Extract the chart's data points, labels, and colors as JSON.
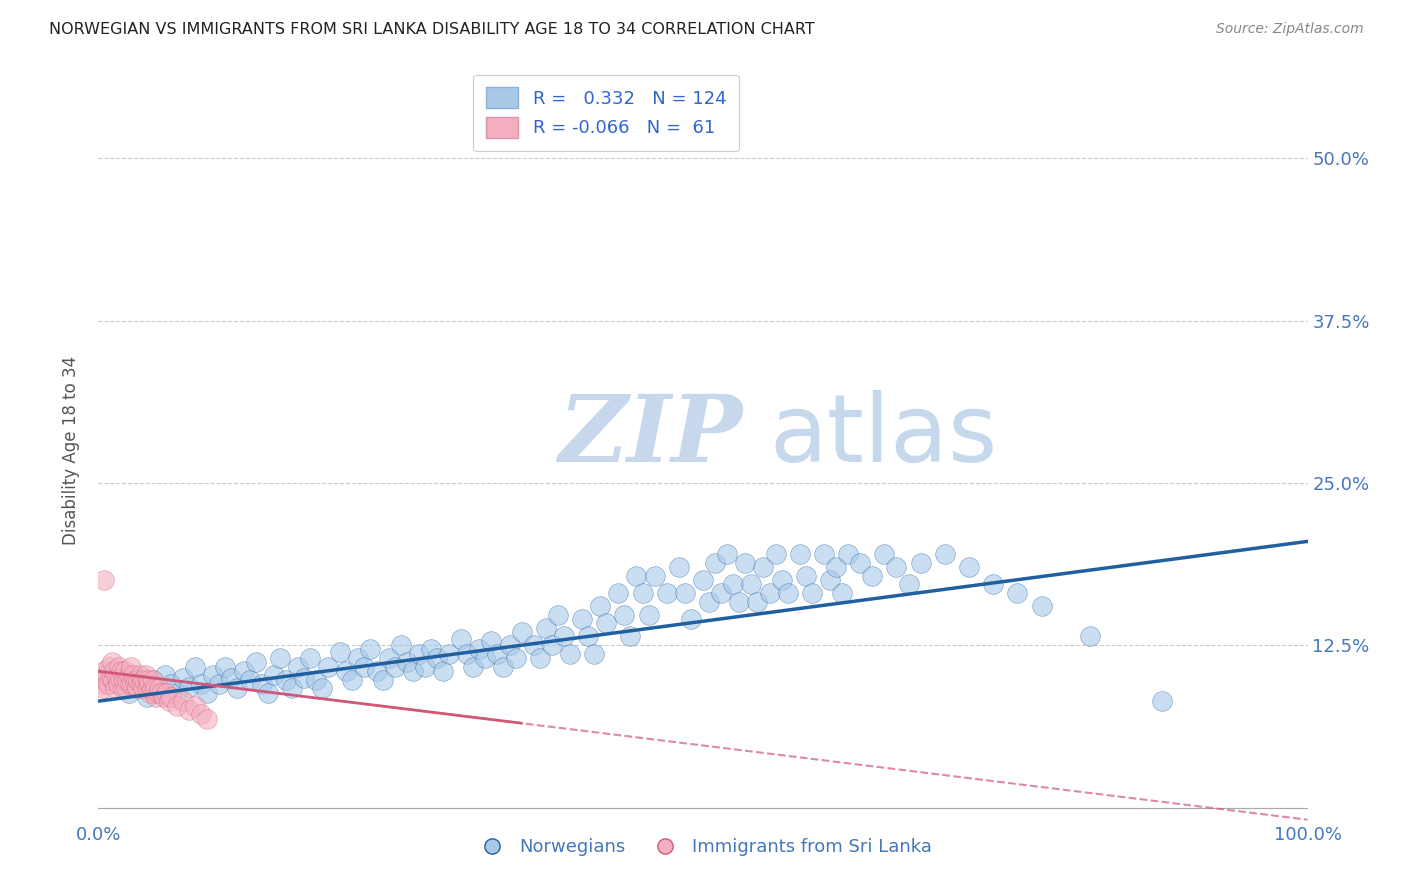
{
  "title": "NORWEGIAN VS IMMIGRANTS FROM SRI LANKA DISABILITY AGE 18 TO 34 CORRELATION CHART",
  "source": "Source: ZipAtlas.com",
  "ylabel": "Disability Age 18 to 34",
  "xlabel": "",
  "watermark_zip": "ZIP",
  "watermark_atlas": "atlas",
  "xlim": [
    0.0,
    1.0
  ],
  "ylim": [
    -0.01,
    0.56
  ],
  "yticks": [
    0.0,
    0.125,
    0.25,
    0.375,
    0.5
  ],
  "ytick_labels": [
    "",
    "12.5%",
    "25.0%",
    "37.5%",
    "50.0%"
  ],
  "xticks": [
    0.0,
    0.25,
    0.5,
    0.75,
    1.0
  ],
  "xtick_labels": [
    "0.0%",
    "",
    "",
    "",
    "100.0%"
  ],
  "legend_R_blue": "0.332",
  "legend_N_blue": "124",
  "legend_R_pink": "-0.066",
  "legend_N_pink": " 61",
  "blue_color": "#a8c8e8",
  "pink_color": "#f4b0c0",
  "blue_line_color": "#2060a0",
  "pink_line_color": "#d05878",
  "background_color": "#ffffff",
  "grid_color": "#cccccc",
  "title_color": "#222222",
  "blue_trend_y_start": 0.082,
  "blue_trend_y_end": 0.205,
  "pink_trend_y_start": 0.105,
  "pink_trend_y_end": 0.065,
  "norwegians_x": [
    0.02,
    0.025,
    0.03,
    0.035,
    0.04,
    0.045,
    0.05,
    0.055,
    0.06,
    0.065,
    0.07,
    0.075,
    0.08,
    0.085,
    0.09,
    0.095,
    0.1,
    0.105,
    0.11,
    0.115,
    0.12,
    0.125,
    0.13,
    0.135,
    0.14,
    0.145,
    0.15,
    0.155,
    0.16,
    0.165,
    0.17,
    0.175,
    0.18,
    0.185,
    0.19,
    0.2,
    0.205,
    0.21,
    0.215,
    0.22,
    0.225,
    0.23,
    0.235,
    0.24,
    0.245,
    0.25,
    0.255,
    0.26,
    0.265,
    0.27,
    0.275,
    0.28,
    0.285,
    0.29,
    0.3,
    0.305,
    0.31,
    0.315,
    0.32,
    0.325,
    0.33,
    0.335,
    0.34,
    0.345,
    0.35,
    0.36,
    0.365,
    0.37,
    0.375,
    0.38,
    0.385,
    0.39,
    0.4,
    0.405,
    0.41,
    0.415,
    0.42,
    0.43,
    0.435,
    0.44,
    0.445,
    0.45,
    0.455,
    0.46,
    0.47,
    0.48,
    0.485,
    0.49,
    0.5,
    0.505,
    0.51,
    0.515,
    0.52,
    0.525,
    0.53,
    0.535,
    0.54,
    0.545,
    0.55,
    0.555,
    0.56,
    0.565,
    0.57,
    0.58,
    0.585,
    0.59,
    0.6,
    0.605,
    0.61,
    0.615,
    0.62,
    0.63,
    0.64,
    0.65,
    0.66,
    0.67,
    0.68,
    0.7,
    0.72,
    0.74,
    0.76,
    0.78,
    0.82,
    0.88
  ],
  "norwegians_y": [
    0.095,
    0.088,
    0.1,
    0.092,
    0.085,
    0.098,
    0.09,
    0.102,
    0.095,
    0.088,
    0.1,
    0.093,
    0.108,
    0.095,
    0.088,
    0.102,
    0.095,
    0.108,
    0.1,
    0.092,
    0.105,
    0.098,
    0.112,
    0.095,
    0.088,
    0.102,
    0.115,
    0.098,
    0.092,
    0.108,
    0.1,
    0.115,
    0.098,
    0.092,
    0.108,
    0.12,
    0.105,
    0.098,
    0.115,
    0.108,
    0.122,
    0.105,
    0.098,
    0.115,
    0.108,
    0.125,
    0.112,
    0.105,
    0.118,
    0.108,
    0.122,
    0.115,
    0.105,
    0.118,
    0.13,
    0.118,
    0.108,
    0.122,
    0.115,
    0.128,
    0.118,
    0.108,
    0.125,
    0.115,
    0.135,
    0.125,
    0.115,
    0.138,
    0.125,
    0.148,
    0.132,
    0.118,
    0.145,
    0.132,
    0.118,
    0.155,
    0.142,
    0.165,
    0.148,
    0.132,
    0.178,
    0.165,
    0.148,
    0.178,
    0.165,
    0.185,
    0.165,
    0.145,
    0.175,
    0.158,
    0.188,
    0.165,
    0.195,
    0.172,
    0.158,
    0.188,
    0.172,
    0.158,
    0.185,
    0.165,
    0.195,
    0.175,
    0.165,
    0.195,
    0.178,
    0.165,
    0.195,
    0.175,
    0.185,
    0.165,
    0.195,
    0.188,
    0.178,
    0.195,
    0.185,
    0.172,
    0.188,
    0.195,
    0.185,
    0.172,
    0.165,
    0.155,
    0.132,
    0.082
  ],
  "immigrants_x": [
    0.002,
    0.003,
    0.004,
    0.005,
    0.006,
    0.007,
    0.008,
    0.009,
    0.01,
    0.011,
    0.012,
    0.013,
    0.014,
    0.015,
    0.016,
    0.017,
    0.018,
    0.019,
    0.02,
    0.021,
    0.022,
    0.023,
    0.024,
    0.025,
    0.026,
    0.027,
    0.028,
    0.029,
    0.03,
    0.031,
    0.032,
    0.033,
    0.034,
    0.035,
    0.036,
    0.037,
    0.038,
    0.039,
    0.04,
    0.041,
    0.042,
    0.043,
    0.044,
    0.045,
    0.046,
    0.047,
    0.048,
    0.049,
    0.05,
    0.052,
    0.054,
    0.056,
    0.058,
    0.06,
    0.065,
    0.07,
    0.075,
    0.08,
    0.085,
    0.09,
    0.005
  ],
  "immigrants_y": [
    0.1,
    0.095,
    0.092,
    0.105,
    0.098,
    0.102,
    0.095,
    0.108,
    0.1,
    0.112,
    0.098,
    0.105,
    0.092,
    0.1,
    0.095,
    0.108,
    0.1,
    0.105,
    0.092,
    0.098,
    0.105,
    0.092,
    0.098,
    0.102,
    0.095,
    0.108,
    0.095,
    0.102,
    0.095,
    0.098,
    0.092,
    0.098,
    0.102,
    0.095,
    0.098,
    0.092,
    0.098,
    0.102,
    0.092,
    0.098,
    0.095,
    0.088,
    0.092,
    0.098,
    0.088,
    0.092,
    0.085,
    0.088,
    0.092,
    0.088,
    0.085,
    0.088,
    0.082,
    0.085,
    0.078,
    0.082,
    0.075,
    0.078,
    0.072,
    0.068,
    0.175
  ]
}
